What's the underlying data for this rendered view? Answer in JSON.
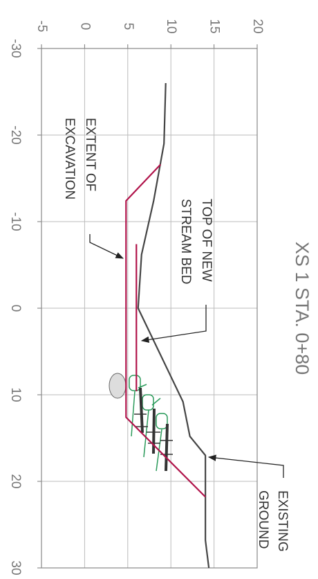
{
  "chart_data": {
    "type": "line",
    "title": "XS 1 STA. 0+80",
    "xlim": [
      -30,
      30
    ],
    "xticks": [
      -30,
      -20,
      -10,
      0,
      10,
      20,
      30
    ],
    "ylim": [
      -5,
      20
    ],
    "yticks": [
      -5,
      0,
      5,
      10,
      15,
      20
    ],
    "grid": true,
    "series": [
      {
        "color": "#444444",
        "x": [
          -26,
          -19,
          -12.4,
          -6.2,
          0,
          10.8,
          14.8,
          17,
          26.8,
          30
        ],
        "values": [
          9.4,
          9.2,
          8.0,
          6.6,
          6.2,
          11.4,
          12.2,
          14.0,
          14.0,
          14.4
        ]
      },
      {
        "color": "#b0134a",
        "x": [
          -16.6,
          -12.4,
          12.6,
          21.8
        ],
        "values": [
          8.8,
          4.8,
          4.8,
          14.0
        ]
      },
      {
        "color": "#b0134a",
        "x": [
          -7.4,
          9.6
        ],
        "values": [
          6.0,
          6.0
        ]
      }
    ],
    "annotations": [
      {
        "lines": [
          "TOP OF NEW",
          "STREAM BED"
        ]
      },
      {
        "lines": [
          "EXTENT OF",
          "EXCAVATION"
        ]
      },
      {
        "lines": [
          "EXISTING",
          "GROUND"
        ]
      }
    ]
  }
}
